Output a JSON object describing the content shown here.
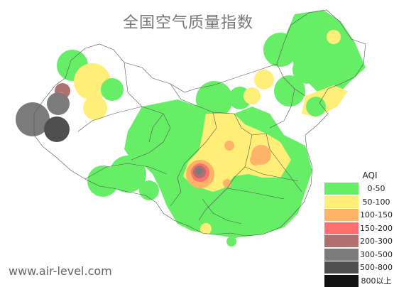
{
  "title": "全国空气质量指数",
  "legend": {
    "title": "AQI",
    "items": [
      {
        "label": "0-50",
        "color": "#66ee66"
      },
      {
        "label": "50-100",
        "color": "#ffee77"
      },
      {
        "label": "100-150",
        "color": "#ffb366"
      },
      {
        "label": "150-200",
        "color": "#ff6f6f"
      },
      {
        "label": "200-300",
        "color": "#b07070"
      },
      {
        "label": "300-500",
        "color": "#7b7b7b"
      },
      {
        "label": "500-800",
        "color": "#4e4e4e"
      },
      {
        "label": "800以上",
        "color": "#111111"
      }
    ]
  },
  "source": "www.air-level.com"
}
